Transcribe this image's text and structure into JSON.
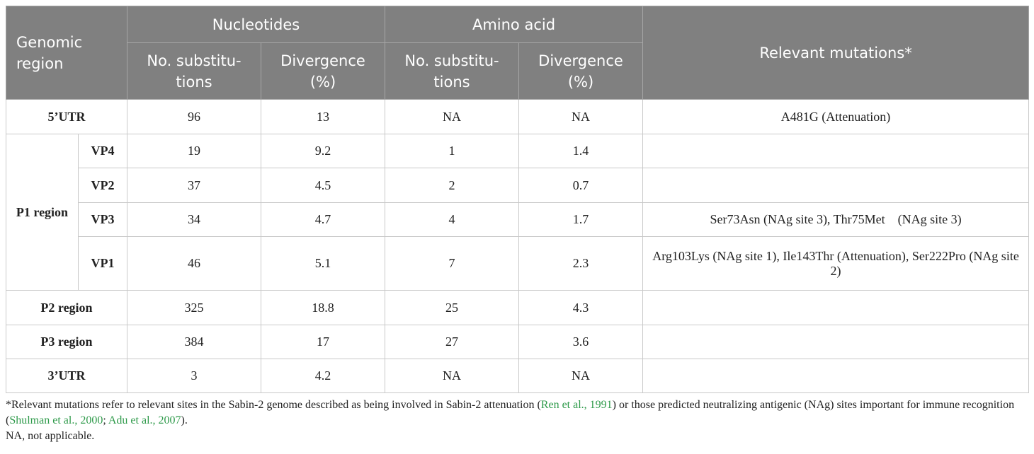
{
  "table": {
    "header": {
      "region": "Genomic region",
      "nucleotides": "Nucleotides",
      "amino_acid": "Amino acid",
      "relevant": "Relevant mutations*",
      "sub_headers": [
        [
          "No. substitu-",
          "tions"
        ],
        [
          "Divergence",
          "(%)"
        ],
        [
          "No. substitu-",
          "tions"
        ],
        [
          "Divergence",
          "(%)"
        ]
      ]
    },
    "rows": [
      {
        "region": "5’UTR",
        "cells": [
          "96",
          "13",
          "NA",
          "NA"
        ],
        "mutations": "A481G (Attenuation)"
      },
      {
        "group": "P1 region",
        "subrows": [
          {
            "region": "VP4",
            "cells": [
              "19",
              "9.2",
              "1",
              "1.4"
            ]
          },
          {
            "region": "VP2",
            "cells": [
              "37",
              "4.5",
              "2",
              "0.7"
            ]
          },
          {
            "region": "VP3",
            "cells": [
              "34",
              "4.7",
              "4",
              "1.7"
            ],
            "mutations": "Ser73Asn (NAg site 3), Thr75Met (NAg site 3)"
          },
          {
            "region": "VP1",
            "cells": [
              "46",
              "5.1",
              "7",
              "2.3"
            ],
            "mutations": "Arg103Lys (NAg site 1), Ile143Thr (Attenuation), Ser222Pro (NAg site 2)"
          }
        ]
      },
      {
        "region": "P2 region",
        "cells": [
          "325",
          "18.8",
          "25",
          "4.3"
        ]
      },
      {
        "region": "P3 region",
        "cells": [
          "384",
          "17",
          "27",
          "3.6"
        ]
      },
      {
        "region": "3’UTR",
        "cells": [
          "3",
          "4.2",
          "NA",
          "NA"
        ]
      }
    ]
  },
  "footnote": {
    "parts": [
      {
        "text": "*Relevant mutations refer to relevant sites in the Sabin-2 genome described as being involved in Sabin-2 attenuation ("
      },
      {
        "text": "Ren et al., 1991",
        "link": true
      },
      {
        "text": ") or those predicted neutralizing antigenic (NAg) sites important for immune recognition ("
      },
      {
        "text": "Shulman et al., 2000",
        "link": true
      },
      {
        "text": "; "
      },
      {
        "text": "Adu et al., 2007",
        "link": true
      },
      {
        "text": ")."
      }
    ],
    "note": "NA, not applicable."
  }
}
